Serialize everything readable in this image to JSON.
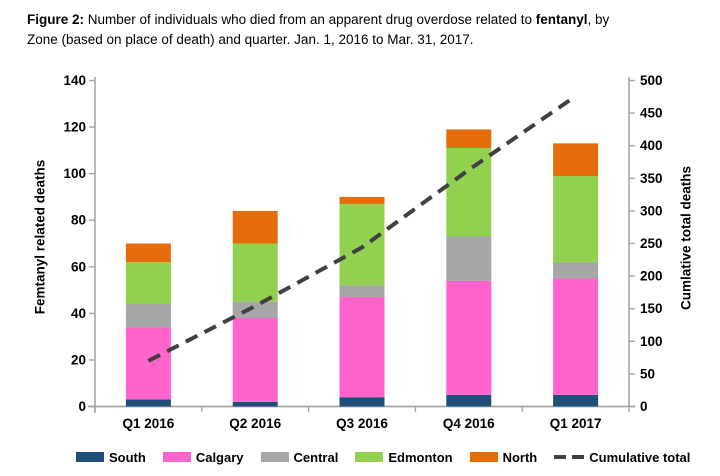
{
  "figure": {
    "caption_bold_prefix": "Figure 2:",
    "caption_line1_mid": " Number of individuals who died from an apparent drug overdose related to ",
    "caption_bold_word": "fentanyl",
    "caption_line1_end": ", by",
    "caption_line2": "Zone (based on place of death) and quarter. Jan. 1, 2016 to Mar. 31, 2017."
  },
  "chart_data": {
    "type": "bar",
    "stacked": true,
    "categories": [
      "Q1 2016",
      "Q2 2016",
      "Q3 2016",
      "Q4 2016",
      "Q1 2017"
    ],
    "series": [
      {
        "name": "South",
        "color": "#1F4E79",
        "values": [
          3,
          2,
          4,
          5,
          5
        ]
      },
      {
        "name": "Calgary",
        "color": "#FF63CC",
        "values": [
          31,
          36,
          43,
          49,
          50
        ]
      },
      {
        "name": "Central",
        "color": "#A6A6A6",
        "values": [
          10,
          7,
          5,
          19,
          7
        ]
      },
      {
        "name": "Edmonton",
        "color": "#92D050",
        "values": [
          18,
          25,
          35,
          38,
          37
        ]
      },
      {
        "name": "North",
        "color": "#E46C0A",
        "values": [
          8,
          14,
          3,
          8,
          14
        ]
      }
    ],
    "bar_totals": [
      70,
      84,
      90,
      119,
      113
    ],
    "line_series": {
      "name": "Cumulative total",
      "color": "#404040",
      "style": "dashed",
      "axis": "right",
      "values": [
        70,
        154,
        244,
        363,
        476
      ]
    },
    "left_axis": {
      "label": "Femtanyl related deaths",
      "min": 0,
      "max": 140,
      "step": 20,
      "ticks": [
        "0",
        "20",
        "40",
        "60",
        "80",
        "100",
        "120",
        "140"
      ]
    },
    "right_axis": {
      "label": "Cumlative total deaths",
      "min": 0,
      "max": 500,
      "step": 50,
      "ticks": [
        "0",
        "50",
        "100",
        "150",
        "200",
        "250",
        "300",
        "350",
        "400",
        "450",
        "500"
      ]
    },
    "legend": [
      "South",
      "Calgary",
      "Central",
      "Edmonton",
      "North",
      "Cumulative total"
    ],
    "legend_position": "bottom",
    "grid": false,
    "colors": {
      "axis_line": "#A6A6A6",
      "tick_text": "#000000"
    }
  }
}
